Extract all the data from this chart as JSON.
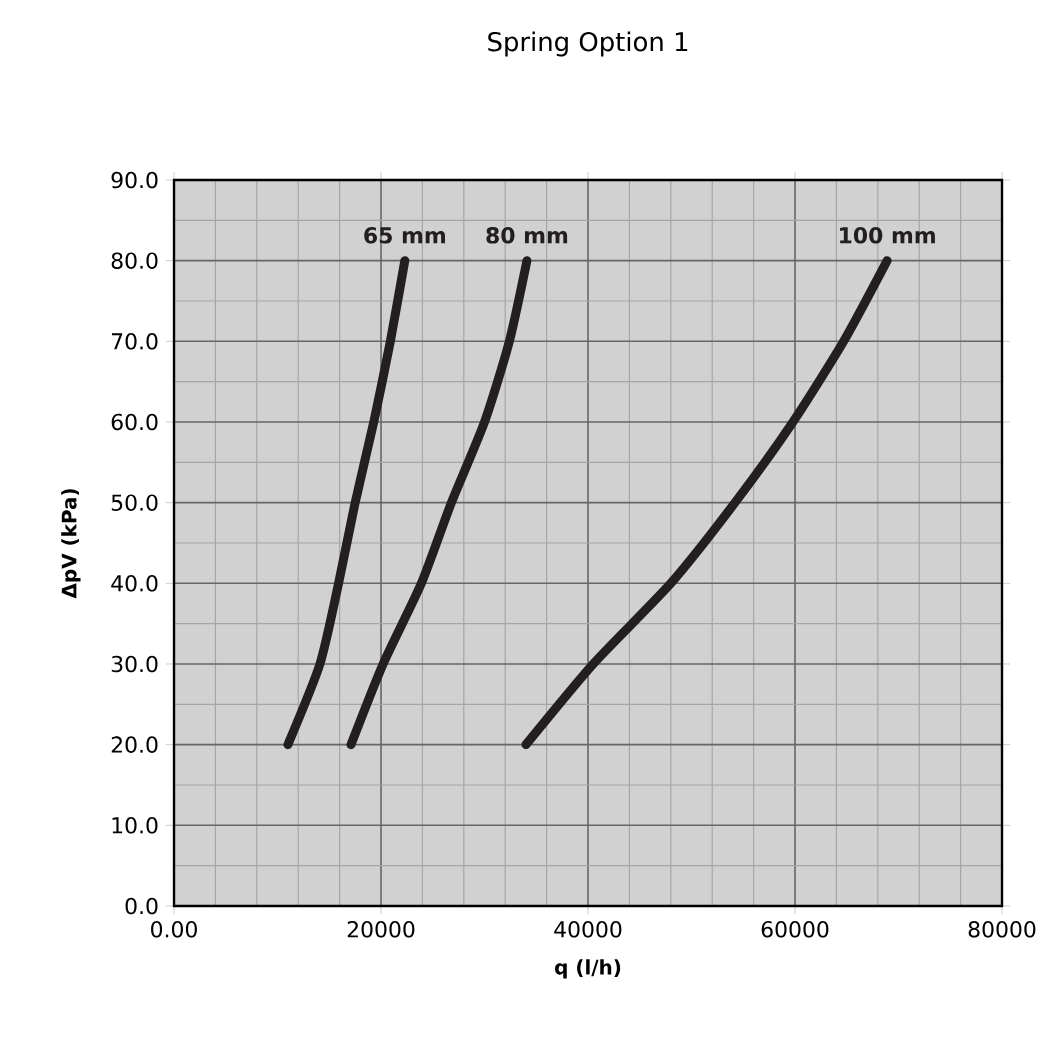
{
  "chart_data": {
    "type": "line",
    "title": "Spring Option 1",
    "xlabel": "q (l/h)",
    "ylabel": "ΔpV (kPa)",
    "xlim": [
      0,
      80000
    ],
    "ylim": [
      0,
      90
    ],
    "xticks": [
      {
        "value": 0,
        "label": "0.00"
      },
      20000,
      40000,
      60000,
      80000
    ],
    "yticks": [
      {
        "value": 0,
        "label": "0.0"
      },
      {
        "value": 10,
        "label": "10.0"
      },
      {
        "value": 20,
        "label": "20.0"
      },
      {
        "value": 30,
        "label": "30.0"
      },
      {
        "value": 40,
        "label": "40.0"
      },
      {
        "value": 50,
        "label": "50.0"
      },
      {
        "value": 60,
        "label": "60.0"
      },
      {
        "value": 70,
        "label": "70.0"
      },
      {
        "value": 80,
        "label": "80.0"
      },
      {
        "value": 90,
        "label": "90.0"
      }
    ],
    "grid": true,
    "legend": false,
    "marker": "none",
    "line_style": "solid",
    "series": [
      {
        "name": "65 mm",
        "color": "#231f20",
        "x": [
          11000,
          14100,
          15900,
          17500,
          19300,
          20900,
          22300
        ],
        "values": [
          20,
          30,
          40,
          50,
          60,
          70,
          80
        ]
      },
      {
        "name": "80 mm",
        "color": "#231f20",
        "x": [
          17100,
          20200,
          23900,
          26800,
          30000,
          32400,
          34100
        ],
        "values": [
          20,
          30,
          40,
          50,
          60,
          70,
          80
        ]
      },
      {
        "name": "100 mm",
        "color": "#231f20",
        "x": [
          34000,
          40500,
          48000,
          54200,
          59800,
          64700,
          68900
        ],
        "values": [
          20,
          30,
          40,
          50,
          60,
          70,
          80
        ]
      }
    ]
  }
}
